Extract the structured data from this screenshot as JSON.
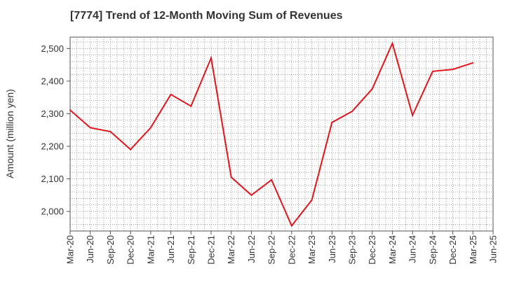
{
  "chart_data": {
    "type": "line",
    "title": "[7774]  Trend of 12-Month Moving Sum of Revenues",
    "ylabel": "Amount (million yen)",
    "xlabel": "",
    "ylim": [
      1940,
      2535
    ],
    "yticks": [
      2000,
      2100,
      2200,
      2300,
      2400,
      2500
    ],
    "ytick_labels": [
      "2,000",
      "2,100",
      "2,200",
      "2,300",
      "2,400",
      "2,500"
    ],
    "categories": [
      "Mar-20",
      "Jun-20",
      "Sep-20",
      "Dec-20",
      "Mar-21",
      "Jun-21",
      "Sep-21",
      "Dec-21",
      "Mar-22",
      "Jun-22",
      "Sep-22",
      "Dec-22",
      "Mar-23",
      "Jun-23",
      "Sep-23",
      "Dec-23",
      "Mar-24",
      "Jun-24",
      "Sep-24",
      "Dec-24",
      "Mar-25",
      "Jun-25"
    ],
    "grid": true,
    "series": [
      {
        "color": "#e3141b",
        "values": [
          2311,
          2257,
          2245,
          2190,
          2257,
          2359,
          2323,
          2471,
          2105,
          2050,
          2097,
          1956,
          2035,
          2273,
          2307,
          2376,
          2516,
          2295,
          2430,
          2436,
          2456,
          null
        ]
      }
    ]
  }
}
